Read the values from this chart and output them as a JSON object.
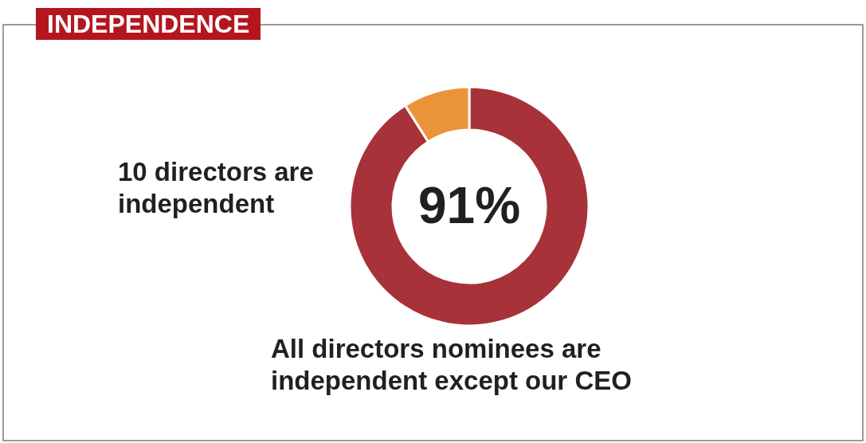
{
  "chart_data": {
    "type": "donut",
    "title": "INDEPENDENCE",
    "categories": [
      null,
      null
    ],
    "values": [
      91,
      9
    ],
    "colors": [
      "#a8323a",
      "#eb9339"
    ],
    "value_labels": [
      "91%",
      null
    ],
    "annotations": [
      "10 directors are independent",
      "All directors nominees are independent except our CEO"
    ]
  }
}
